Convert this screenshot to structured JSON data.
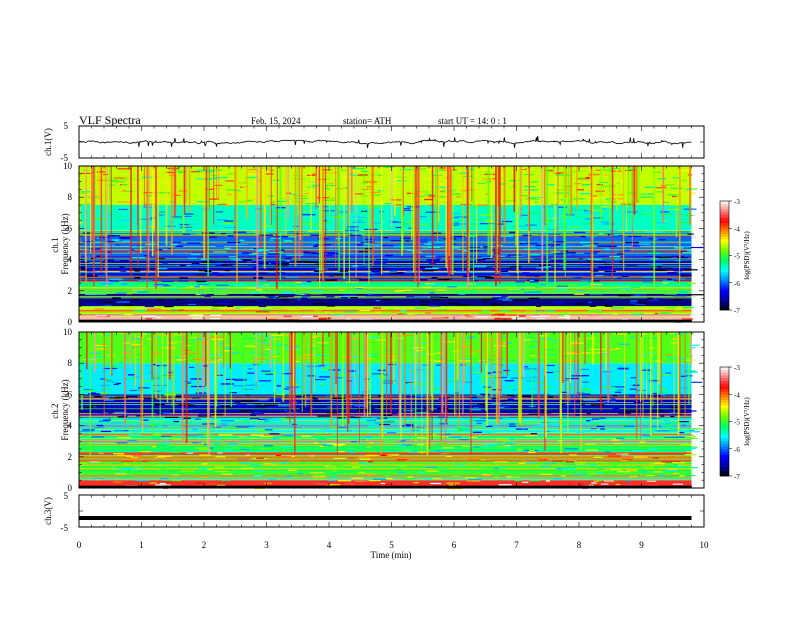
{
  "header": {
    "title": "VLF  Spectra",
    "date": "Feb. 15, 2024",
    "station": "station= ATH",
    "start": "start  UT  =    14: 0   : 1"
  },
  "chart_data": [
    {
      "type": "line",
      "panel": "ch1-waveform",
      "ylabel": "ch.1(V)",
      "ylim": [
        -5,
        5
      ],
      "y_ticks": [
        "5",
        "-5"
      ],
      "xlim": [
        0,
        10
      ],
      "trace_level": 0,
      "trace_range": [
        -0.9,
        0.9
      ]
    },
    {
      "type": "heatmap",
      "panel": "ch1-spectrogram",
      "ylabel": "ch.1\nFrequency (kHz)",
      "ylim": [
        0,
        10
      ],
      "y_ticks": [
        "0",
        "2",
        "4",
        "6",
        "8",
        "10"
      ],
      "xlim": [
        0,
        9.8
      ],
      "colorbar": {
        "label": "log(PSD)(V²/Hz)",
        "range": [
          -7,
          -3
        ],
        "ticks": [
          "-3",
          "-4",
          "-5",
          "-6",
          "-7"
        ]
      },
      "bands": [
        {
          "f": [
            0,
            0.5
          ],
          "level": -3.2
        },
        {
          "f": [
            0.5,
            1.0
          ],
          "level": -4.6
        },
        {
          "f": [
            1.0,
            1.8
          ],
          "level": -6.7
        },
        {
          "f": [
            1.8,
            2.6
          ],
          "level": -5.2
        },
        {
          "f": [
            2.6,
            4.2
          ],
          "level": -6.4
        },
        {
          "f": [
            4.2,
            5.8
          ],
          "level": -6.0
        },
        {
          "f": [
            5.8,
            7.5
          ],
          "level": -5.4
        },
        {
          "f": [
            7.5,
            10
          ],
          "level": -4.6
        }
      ]
    },
    {
      "type": "heatmap",
      "panel": "ch2-spectrogram",
      "ylabel": "ch.2\nFrequency (kHz)",
      "ylim": [
        0,
        10
      ],
      "y_ticks": [
        "0",
        "2",
        "4",
        "6",
        "8",
        "10"
      ],
      "xlim": [
        0,
        9.8
      ],
      "colorbar": {
        "label": "log(PSD)(V²/Hz)",
        "range": [
          -7,
          -3
        ],
        "ticks": [
          "-3",
          "-4",
          "-5",
          "-6",
          "-7"
        ]
      },
      "bands": [
        {
          "f": [
            0,
            0.5
          ],
          "level": -3.6
        },
        {
          "f": [
            0.5,
            1.7
          ],
          "level": -5.0
        },
        {
          "f": [
            1.7,
            2.3
          ],
          "level": -3.9
        },
        {
          "f": [
            2.3,
            3.5
          ],
          "level": -5.2
        },
        {
          "f": [
            3.5,
            4.5
          ],
          "level": -5.6
        },
        {
          "f": [
            4.5,
            6.0
          ],
          "level": -6.5
        },
        {
          "f": [
            6.0,
            8.0
          ],
          "level": -5.6
        },
        {
          "f": [
            8.0,
            10
          ],
          "level": -4.9
        }
      ]
    },
    {
      "type": "line",
      "panel": "ch3-waveform",
      "ylabel": "ch.3(V)",
      "ylim": [
        -5,
        5
      ],
      "y_ticks": [
        "5",
        "-5"
      ],
      "xlabel": "Time  (min)",
      "xlim": [
        0,
        10
      ],
      "x_ticks": [
        "0",
        "1",
        "2",
        "3",
        "4",
        "5",
        "6",
        "7",
        "8",
        "9",
        "10"
      ],
      "trace_level": -2.2,
      "trace_range": [
        -2.2,
        -2.2
      ]
    }
  ],
  "colors": {
    "scale": [
      "#000000",
      "#0000a0",
      "#0000ff",
      "#0088ff",
      "#00ffff",
      "#00ff66",
      "#66ff00",
      "#ffff00",
      "#ff8800",
      "#ff0000",
      "#ff8080",
      "#ffffff"
    ],
    "trace": "#000000"
  }
}
